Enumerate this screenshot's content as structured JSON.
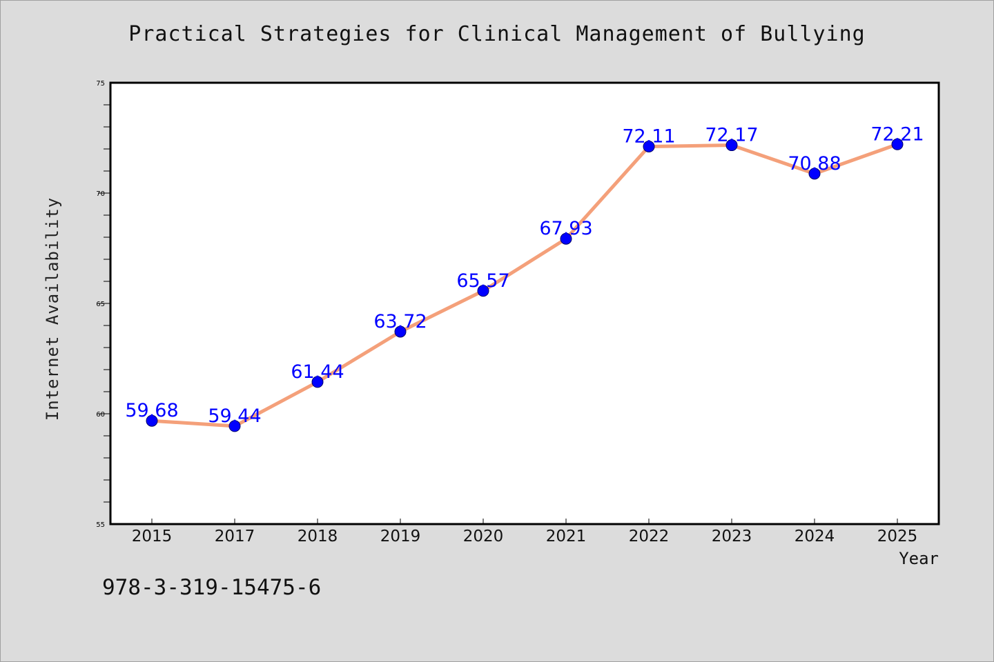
{
  "chart_data": {
    "type": "line",
    "title": "Practical Strategies for Clinical Management of Bullying",
    "xlabel": "Year",
    "ylabel": "Internet Availability",
    "categories": [
      "2015",
      "2017",
      "2018",
      "2019",
      "2020",
      "2021",
      "2022",
      "2023",
      "2024",
      "2025"
    ],
    "series": [
      {
        "values": [
          59.68,
          59.44,
          61.44,
          63.72,
          65.57,
          67.93,
          72.11,
          72.17,
          70.88,
          72.21
        ],
        "line_color": "#f4a07a",
        "marker_color": "#0000ff"
      }
    ],
    "data_labels": [
      "59.68",
      "59.44",
      "61.44",
      "63.72",
      "65.57",
      "67.93",
      "72.11",
      "72.17",
      "70.88",
      "72.21"
    ],
    "ylim": [
      55,
      75
    ],
    "y_ticks": [
      "55",
      "60",
      "65",
      "70",
      "75"
    ],
    "grid": false,
    "legend": "none"
  },
  "footnote": "978-3-319-15475-6"
}
